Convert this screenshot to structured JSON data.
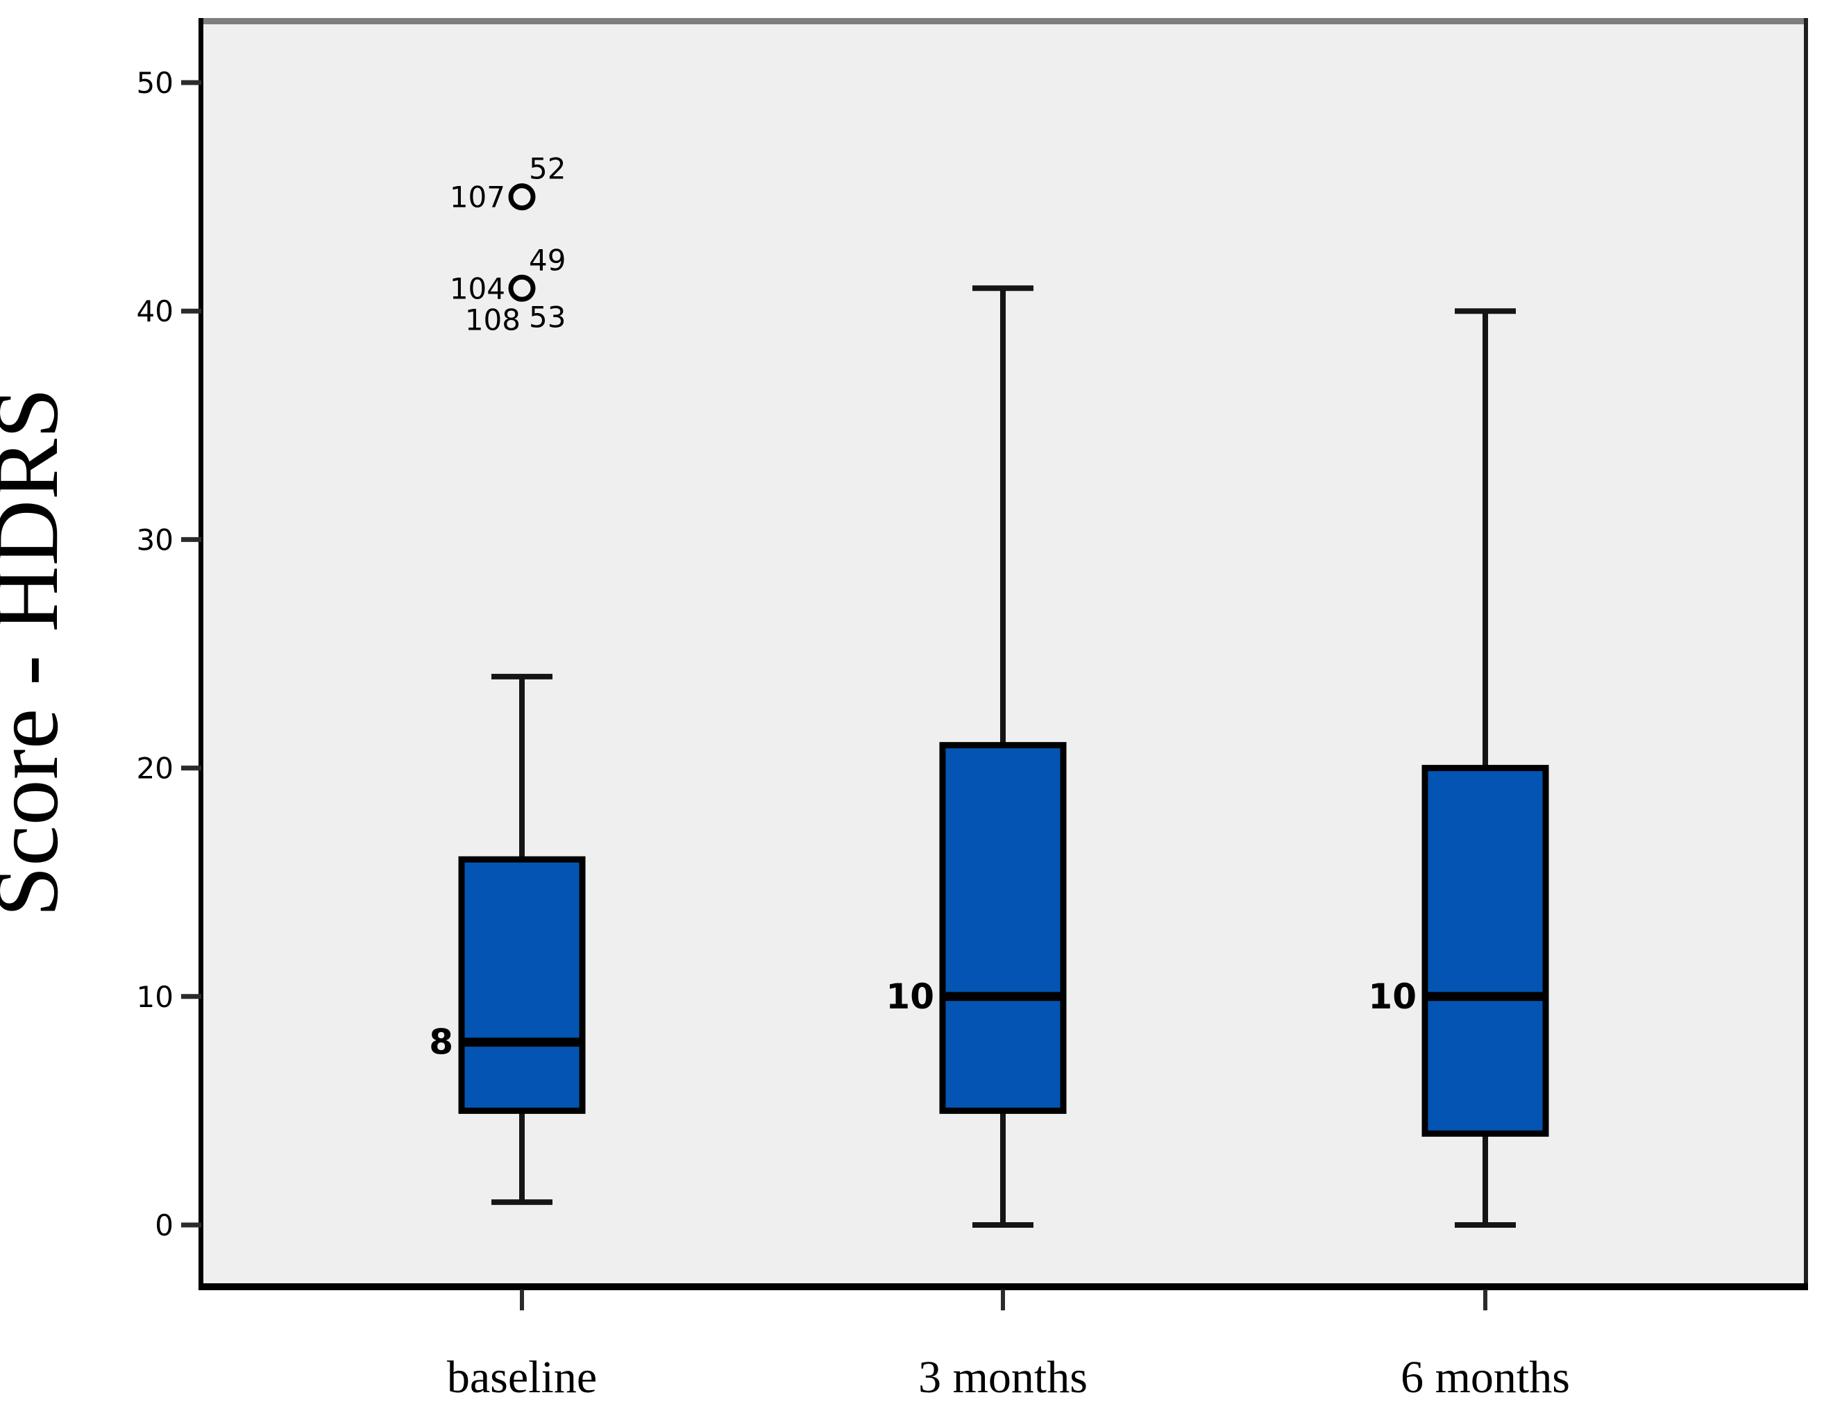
{
  "chart_data": {
    "type": "box",
    "title": "",
    "xlabel": "",
    "ylabel": "Score - HDRS",
    "categories": [
      "baseline",
      "3 months",
      "6 months"
    ],
    "yticks": [
      0,
      10,
      20,
      30,
      40,
      50
    ],
    "ylim": [
      -3,
      53
    ],
    "grid": false,
    "legend": "none",
    "series": [
      {
        "category": "baseline",
        "whisker_low": 1,
        "q1": 5,
        "median": 8,
        "q3": 16,
        "whisker_high": 24,
        "median_label": "8",
        "outliers": [
          {
            "value": 45,
            "labels": [
              {
                "text": "107",
                "pos": "left"
              },
              {
                "text": "52",
                "pos": "top-right"
              }
            ]
          },
          {
            "value": 41,
            "labels": [
              {
                "text": "104",
                "pos": "left"
              },
              {
                "text": "49",
                "pos": "top-right"
              },
              {
                "text": "108",
                "pos": "bottom-left"
              },
              {
                "text": "53",
                "pos": "bottom-right"
              }
            ]
          }
        ]
      },
      {
        "category": "3 months",
        "whisker_low": 0,
        "q1": 5,
        "median": 10,
        "q3": 21,
        "whisker_high": 41,
        "median_label": "10",
        "outliers": []
      },
      {
        "category": "6 months",
        "whisker_low": 0,
        "q1": 4,
        "median": 10,
        "q3": 20,
        "whisker_high": 40,
        "median_label": "10",
        "outliers": []
      }
    ],
    "colors": {
      "box_fill": "#0455B3",
      "box_border": "#000000",
      "median_line": "#000000",
      "whisker": "#151515",
      "outlier_stroke": "#000000",
      "plot_bg": "#EFEFEF",
      "page_bg": "#FFFFFF",
      "frame_top": "#7E7E7E",
      "frame_right": "#1F1F1F",
      "axis": "#000000",
      "tick": "#2B2B2B",
      "text": "#000000"
    }
  }
}
